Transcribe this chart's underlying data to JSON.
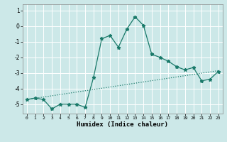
{
  "title": "",
  "xlabel": "Humidex (Indice chaleur)",
  "background_color": "#cce8e8",
  "grid_color": "#ffffff",
  "line_color": "#1a7a6a",
  "xlim": [
    -0.5,
    23.5
  ],
  "ylim": [
    -5.6,
    1.4
  ],
  "yticks": [
    1,
    0,
    -1,
    -2,
    -3,
    -4,
    -5
  ],
  "xticks": [
    0,
    1,
    2,
    3,
    4,
    5,
    6,
    7,
    8,
    9,
    10,
    11,
    12,
    13,
    14,
    15,
    16,
    17,
    18,
    19,
    20,
    21,
    22,
    23
  ],
  "curve1_x": [
    0,
    1,
    2,
    3,
    4,
    5,
    6,
    7,
    8,
    9,
    10,
    11,
    12,
    13,
    14,
    15,
    16,
    17,
    18,
    19,
    20,
    21,
    22,
    23
  ],
  "curve1_y": [
    -4.7,
    -4.6,
    -4.7,
    -5.3,
    -5.0,
    -5.0,
    -5.0,
    -5.2,
    -3.3,
    -0.8,
    -0.6,
    -1.35,
    -0.2,
    0.6,
    0.05,
    -1.8,
    -2.0,
    -2.25,
    -2.6,
    -2.8,
    -2.65,
    -3.5,
    -3.4,
    -2.9
  ],
  "curve2_x": [
    0,
    23
  ],
  "curve2_y": [
    -4.7,
    -2.85
  ]
}
